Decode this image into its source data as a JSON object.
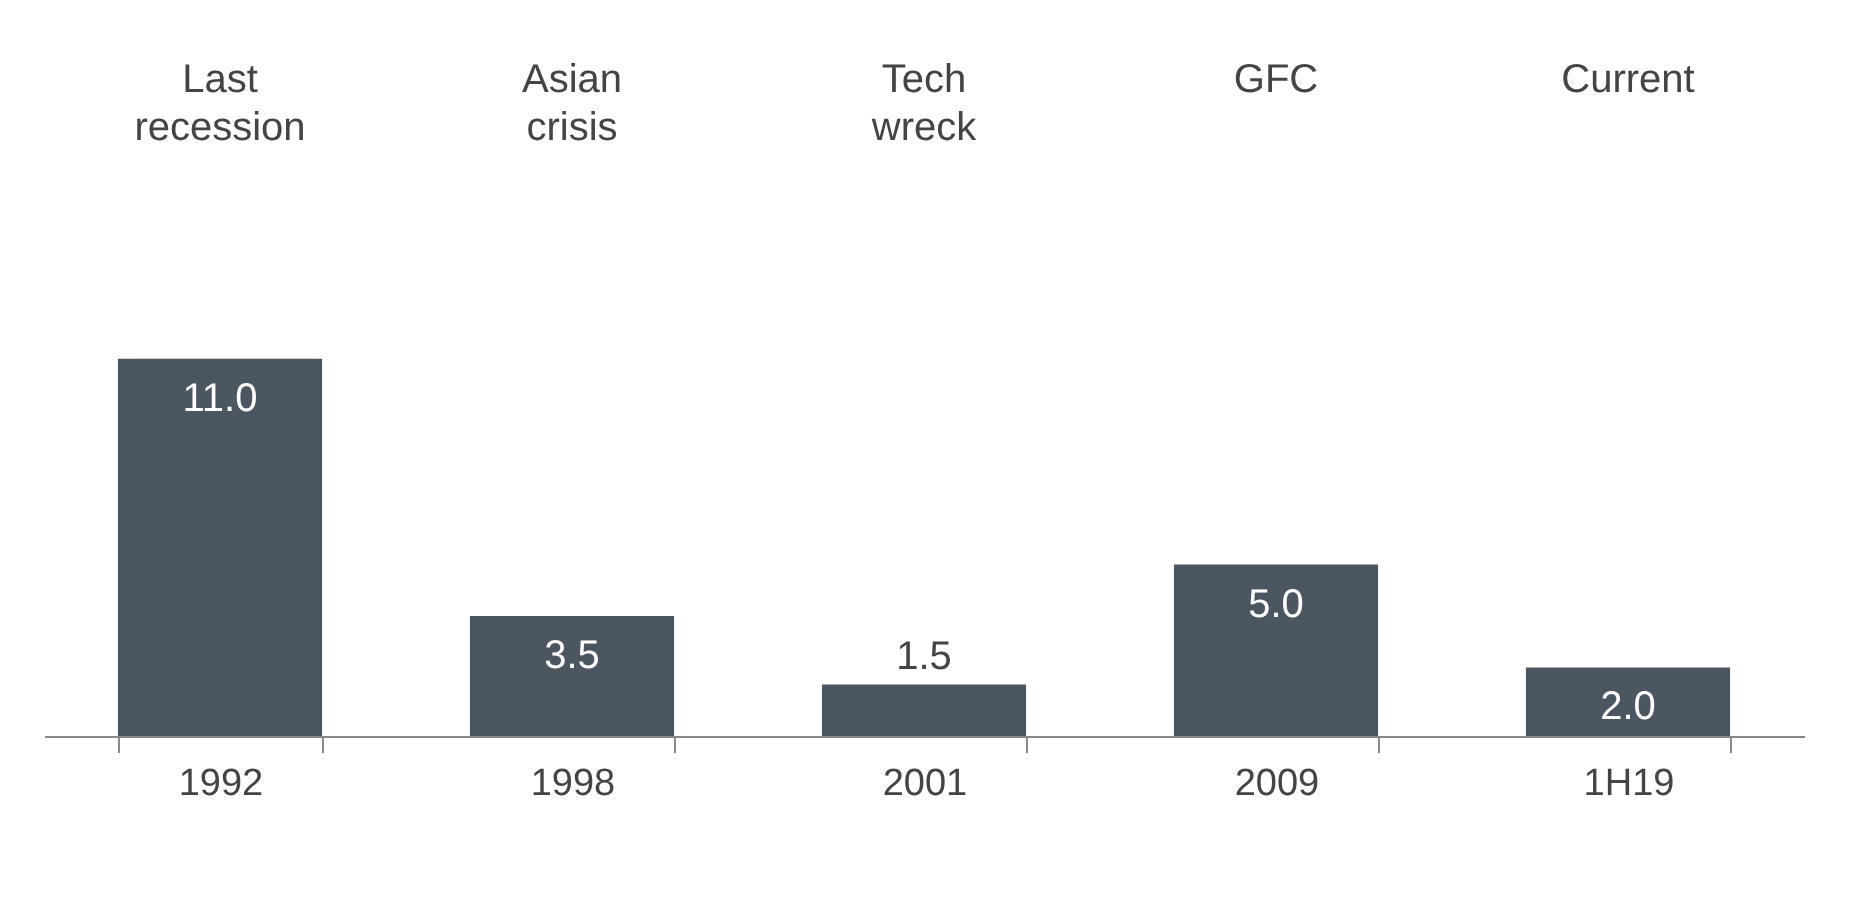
{
  "chart_data": {
    "type": "bar",
    "categories": [
      "1992",
      "1998",
      "2001",
      "2009",
      "1H19"
    ],
    "values": [
      11,
      3.5,
      1.5,
      5,
      2
    ],
    "value_labels": [
      "11.0",
      "3.5",
      "1.5",
      "5.0",
      "2.0"
    ],
    "color": "#4b5661",
    "grid": false,
    "annotations": [
      "Last recession",
      "Asian crisis",
      "Tech wreck",
      "GFC",
      "Current"
    ]
  }
}
